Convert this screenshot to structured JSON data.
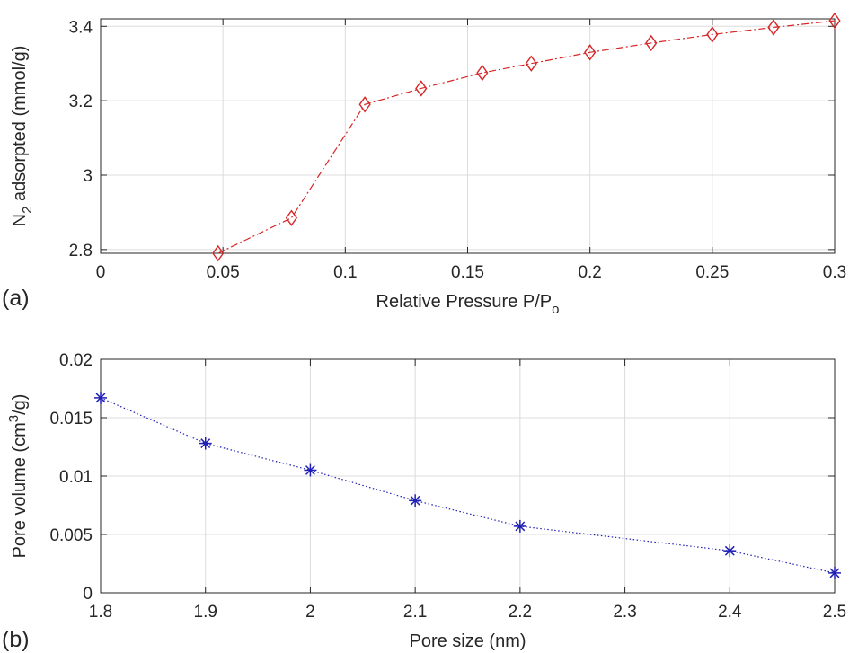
{
  "chart_data": [
    {
      "type": "line",
      "panel_label": "(a)",
      "xlabel": "Relative Pressure P/P",
      "xlabel_sub": "o",
      "ylabel": "N",
      "ylabel_sub": "2",
      "ylabel_rest": " adsorpted (mmol/g)",
      "xlim": [
        0,
        0.3
      ],
      "ylim": [
        2.79,
        3.42
      ],
      "xticks": [
        0,
        0.05,
        0.1,
        0.15,
        0.2,
        0.25,
        0.3
      ],
      "xtick_labels": [
        "0",
        "0.05",
        "0.1",
        "0.15",
        "0.2",
        "0.25",
        "0.3"
      ],
      "yticks": [
        2.8,
        3.0,
        3.2,
        3.4
      ],
      "ytick_labels": [
        "2.8",
        "3",
        "3.2",
        "3.4"
      ],
      "grid": true,
      "series": [
        {
          "color": "#d62728",
          "marker": "diamond",
          "line_style": "dash-dot",
          "x": [
            0.048,
            0.078,
            0.108,
            0.131,
            0.156,
            0.176,
            0.2,
            0.225,
            0.25,
            0.275,
            0.3
          ],
          "y": [
            2.79,
            2.885,
            3.19,
            3.233,
            3.275,
            3.3,
            3.33,
            3.355,
            3.378,
            3.397,
            3.415
          ]
        }
      ]
    },
    {
      "type": "line",
      "panel_label": "(b)",
      "xlabel": "Pore size (nm)",
      "ylabel": "Pore volume (cm",
      "ylabel_sup": "3",
      "ylabel_rest": "/g)",
      "xlim": [
        1.8,
        2.5
      ],
      "ylim": [
        0,
        0.02
      ],
      "xticks": [
        1.8,
        1.9,
        2.0,
        2.1,
        2.2,
        2.3,
        2.4,
        2.5
      ],
      "xtick_labels": [
        "1.8",
        "1.9",
        "2",
        "2.1",
        "2.2",
        "2.3",
        "2.4",
        "2.5"
      ],
      "yticks": [
        0,
        0.005,
        0.01,
        0.015,
        0.02
      ],
      "ytick_labels": [
        "0",
        "0.005",
        "0.01",
        "0.015",
        "0.02"
      ],
      "grid": true,
      "series": [
        {
          "color": "#1f1fb4",
          "marker": "asterisk",
          "line_style": "dotted",
          "x": [
            1.8,
            1.9,
            2.0,
            2.1,
            2.2,
            2.4,
            2.5
          ],
          "y": [
            0.0167,
            0.0128,
            0.0105,
            0.0079,
            0.0057,
            0.0036,
            0.0017
          ]
        }
      ]
    }
  ]
}
